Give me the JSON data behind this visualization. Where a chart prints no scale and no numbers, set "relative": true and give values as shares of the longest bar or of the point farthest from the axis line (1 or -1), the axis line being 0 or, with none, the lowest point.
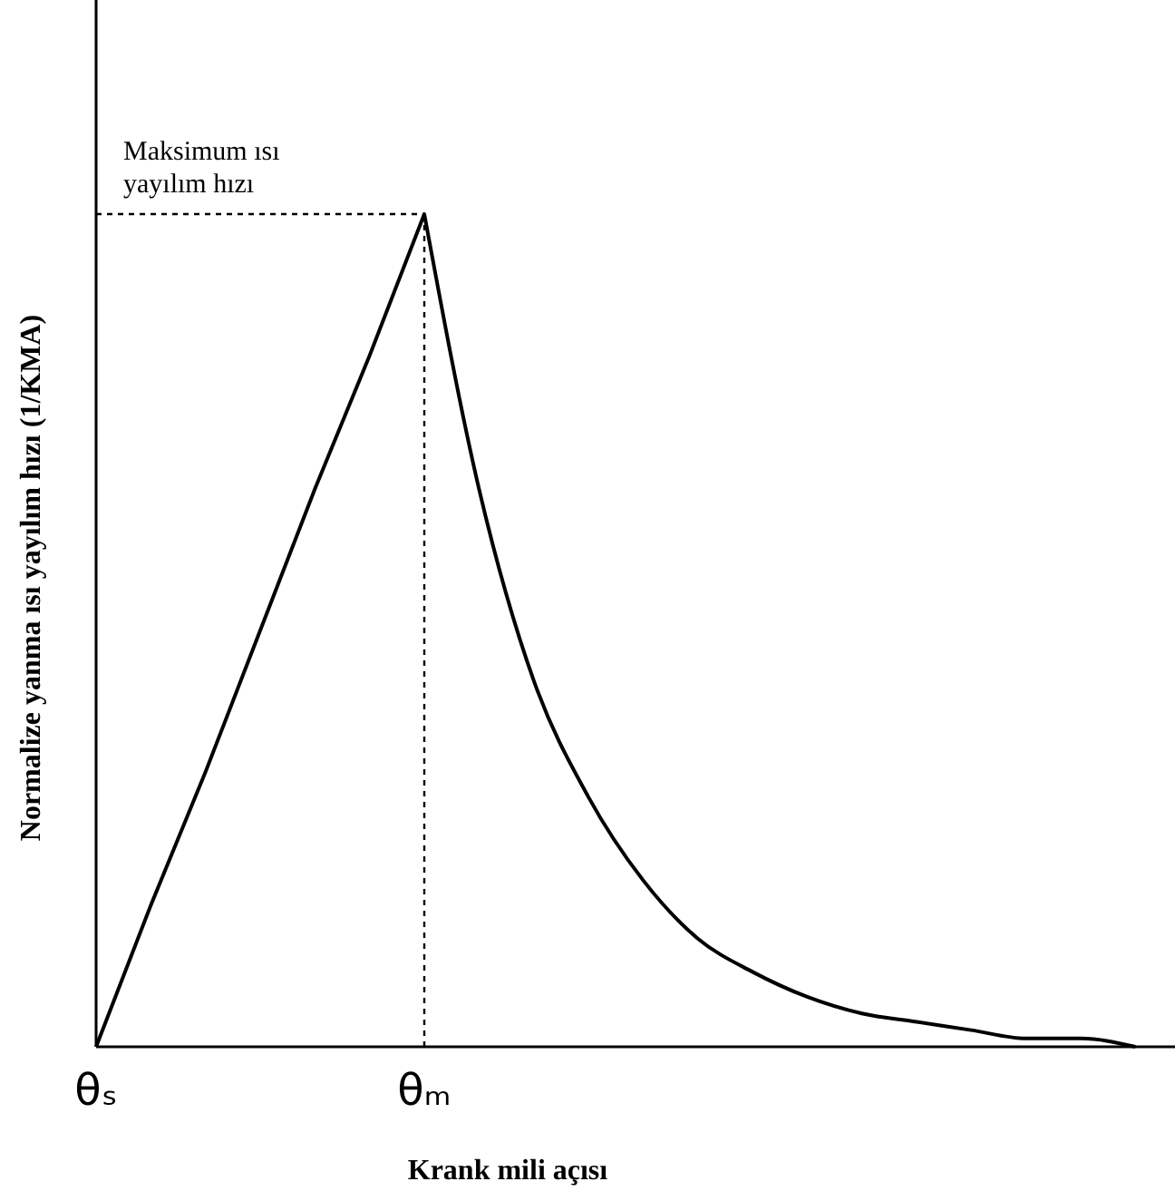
{
  "chart_data": {
    "type": "line",
    "relative": true,
    "xlabel": "Krank mili açısı",
    "ylabel": "Normalize yanma ısı yayılım hızı (1/KMA)",
    "categories": [
      "θₛ",
      null,
      null,
      null,
      null,
      null,
      "θₘ",
      null,
      null,
      null,
      null,
      null,
      null,
      null,
      null,
      null,
      null,
      null,
      null,
      null
    ],
    "series": [
      {
        "color": "#000000",
        "values": [
          0,
          0.17,
          0.33,
          0.5,
          0.67,
          0.83,
          1,
          0.67,
          0.44,
          0.3,
          0.2,
          0.13,
          0.09,
          0.06,
          0.04,
          0.03,
          0.02,
          0.01,
          0.01,
          0
        ]
      }
    ],
    "ref_lines": [
      {
        "axis": "y",
        "value": 1,
        "line_style": "dashed",
        "color": "#000000"
      },
      {
        "axis": "x",
        "value": "θₘ",
        "line_style": "dashed",
        "color": "#000000"
      }
    ],
    "annotations": [
      "Maksimum ısı yayılım hızı"
    ],
    "grid": false,
    "marker": "none",
    "line_style": "solid"
  }
}
